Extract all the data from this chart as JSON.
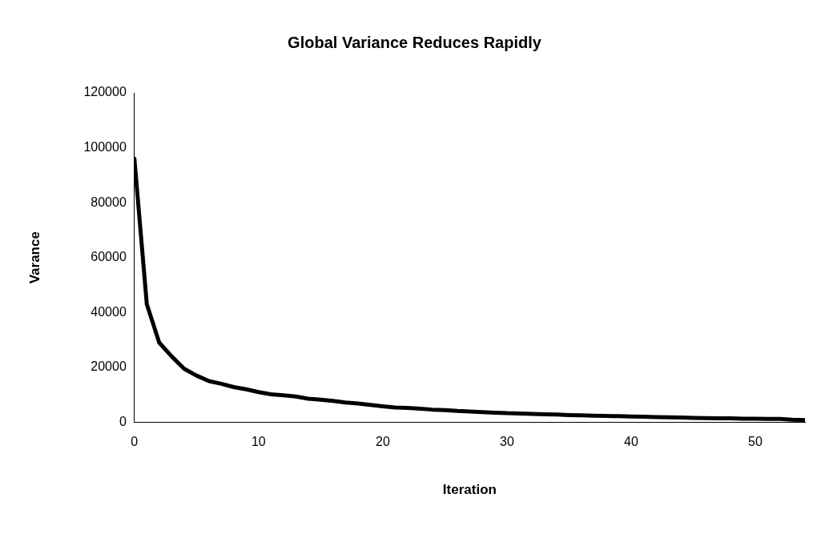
{
  "chart_data": {
    "type": "line",
    "title": "Global Variance Reduces Rapidly",
    "xlabel": "Iteration",
    "ylabel": "Varance",
    "x": [
      0,
      1,
      2,
      3,
      4,
      5,
      6,
      7,
      8,
      9,
      10,
      11,
      12,
      13,
      14,
      15,
      16,
      17,
      18,
      19,
      20,
      21,
      22,
      23,
      24,
      25,
      26,
      27,
      28,
      29,
      30,
      31,
      32,
      33,
      34,
      35,
      36,
      37,
      38,
      39,
      40,
      41,
      42,
      43,
      44,
      45,
      46,
      47,
      48,
      49,
      50,
      51,
      52,
      53,
      54
    ],
    "series": [
      {
        "color": "#000000",
        "values": [
          96000,
          43000,
          29000,
          24000,
          19500,
          17000,
          15000,
          14000,
          12800,
          12000,
          11000,
          10200,
          9800,
          9400,
          8600,
          8200,
          7800,
          7200,
          6800,
          6300,
          5800,
          5400,
          5200,
          4900,
          4600,
          4400,
          4100,
          3900,
          3700,
          3500,
          3300,
          3200,
          3000,
          2900,
          2800,
          2600,
          2500,
          2400,
          2300,
          2200,
          2100,
          2000,
          1900,
          1800,
          1700,
          1600,
          1500,
          1400,
          1400,
          1300,
          1300,
          1200,
          1200,
          900,
          800
        ]
      }
    ],
    "xlim": [
      0,
      54
    ],
    "xticks": [
      0,
      10,
      20,
      30,
      40,
      50
    ],
    "ylim": [
      0,
      120000
    ],
    "yticks": [
      0,
      20000,
      40000,
      60000,
      80000,
      100000,
      120000
    ],
    "grid": false,
    "legend": false,
    "marker": "none",
    "line_style": "solid"
  }
}
